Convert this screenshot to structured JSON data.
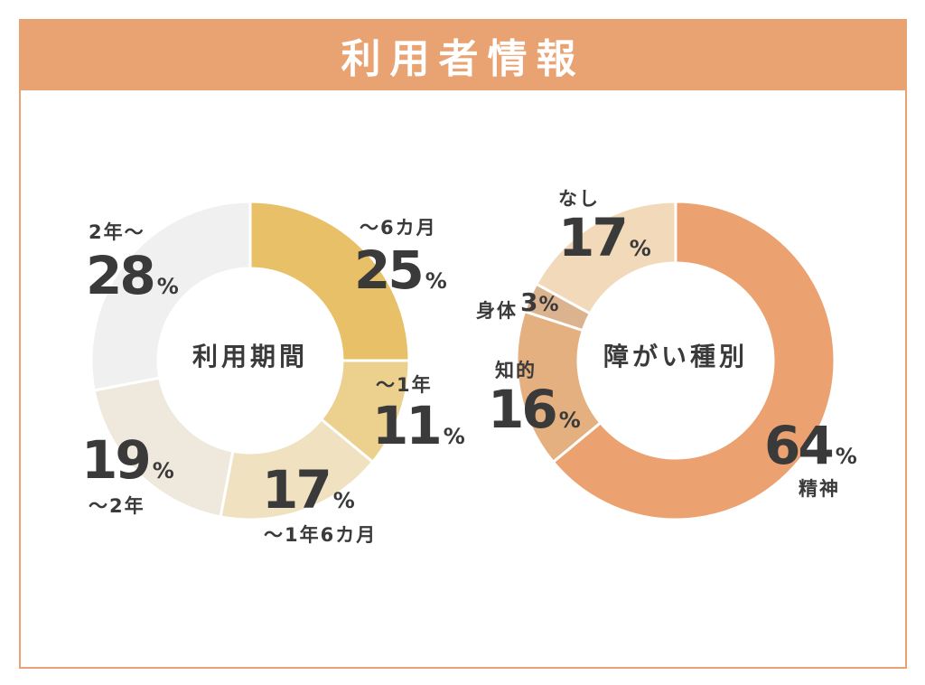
{
  "header": {
    "title": "利用者情報"
  },
  "colors": {
    "accent": "#e9a271"
  },
  "chart_data": [
    {
      "type": "pie",
      "title": "利用期間",
      "categories": [
        "〜6カ月",
        "〜1年",
        "〜1年6カ月",
        "〜2年",
        "2年〜"
      ],
      "values": [
        25,
        11,
        17,
        19,
        28
      ],
      "display_values": [
        "25",
        "11",
        "17",
        "19",
        "28"
      ],
      "unit": "%",
      "colors": [
        "#e8c068",
        "#ecd08e",
        "#f0e2c0",
        "#efe8dc",
        "#f0f0f0"
      ]
    },
    {
      "type": "pie",
      "title": "障がい種別",
      "categories": [
        "精神",
        "知的",
        "身体",
        "なし"
      ],
      "values": [
        64,
        16,
        3,
        17
      ],
      "display_values": [
        "64",
        "16",
        "3",
        "17"
      ],
      "unit": "%",
      "colors": [
        "#eba270",
        "#e4b080",
        "#dbb38f",
        "#f1d9b9"
      ]
    }
  ]
}
